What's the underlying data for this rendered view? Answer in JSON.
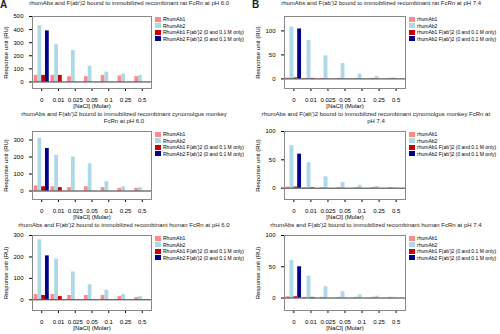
{
  "chart_data": [
    {
      "type": "bar",
      "title": "rhumAbs and F(ab')2 bound to immobilized recombinant rat FcRn at pH 6.0",
      "annotations": [
        "A"
      ],
      "x_label": "[NaCl] (Molar)",
      "y_label": "Response unit (RU)",
      "categories": [
        "0",
        "0.01",
        "0.025",
        "0.05",
        "0.1",
        "0.25",
        "0.5"
      ],
      "series": [
        {
          "name": "RhumAb1",
          "color": "#FF8888",
          "values": [
            50,
            50,
            40,
            40,
            50,
            45,
            40
          ]
        },
        {
          "name": "RhumAb2",
          "color": "#ADD8E6",
          "values": [
            430,
            285,
            240,
            120,
            75,
            60,
            50
          ]
        },
        {
          "name": "RhumAb1 F(ab')2 (0 and 0.1 M only)",
          "color": "#CC0000",
          "values": [
            50,
            50,
            0,
            0,
            0,
            0,
            0
          ]
        },
        {
          "name": "RhumAb2 F(ab')2 (0 and 0.1 M only)",
          "color": "#00008B",
          "values": [
            390,
            0,
            0,
            0,
            0,
            0,
            0
          ]
        }
      ],
      "ylim": [
        -50,
        500
      ],
      "yticks": [
        0,
        100,
        200,
        300,
        400,
        500
      ],
      "grid": false,
      "legend": "upper right"
    },
    {
      "type": "bar",
      "title": "rhumAbs and F(ab')2 bound to immobilized recombinant rat FcRn at pH 7.4",
      "annotations": [
        "B"
      ],
      "x_label": "[NaCl] (Molar)",
      "y_label": "Response unit (RU)",
      "categories": [
        "0",
        "0.01",
        "0.025",
        "0.05",
        "0.1",
        "0.25",
        "0.5"
      ],
      "series": [
        {
          "name": "rhumAb1",
          "color": "#FF8888",
          "values": [
            2,
            1,
            1,
            1,
            1,
            1,
            1
          ]
        },
        {
          "name": "rhumAb2",
          "color": "#ADD8E6",
          "values": [
            108,
            80,
            48,
            32,
            10,
            5,
            2
          ]
        },
        {
          "name": "rhumAb1 F(ab')2 (0 and 0.1 M only)",
          "color": "#CC0000",
          "values": [
            2,
            1,
            0,
            0,
            0,
            0,
            0
          ]
        },
        {
          "name": "rhumAb2 F(ab')2 (0 and 0.1 M only)",
          "color": "#00008B",
          "values": [
            104,
            0,
            0,
            0,
            0,
            0,
            0
          ]
        }
      ],
      "ylim": [
        -20,
        130
      ],
      "yticks": [
        0,
        50,
        100
      ],
      "grid": false,
      "legend": "upper right"
    },
    {
      "type": "bar",
      "title": "rhumAbs and F(ab')2 bound to immobilized recombinant cynomolgus monkey\nFcRn at pH 6.0",
      "x_label": "[NaCl] (Molar)",
      "y_label": "Response unit (RU)",
      "categories": [
        "0",
        "0.01",
        "0.025",
        "0.05",
        "0.1",
        "0.25",
        "0.5"
      ],
      "series": [
        {
          "name": "RhumAb1",
          "color": "#FF8888",
          "values": [
            30,
            25,
            20,
            25,
            20,
            15,
            15
          ]
        },
        {
          "name": "RhumAb2",
          "color": "#ADD8E6",
          "values": [
            310,
            210,
            200,
            160,
            55,
            25,
            20
          ]
        },
        {
          "name": "RhumAb1 F(ab')2 (0 and 0.1 M only)",
          "color": "#CC0000",
          "values": [
            25,
            20,
            0,
            0,
            0,
            0,
            0
          ]
        },
        {
          "name": "RhumAb2 F(ab')2 (0 and 0.1 M only)",
          "color": "#00008B",
          "values": [
            250,
            0,
            0,
            0,
            0,
            0,
            0
          ]
        }
      ],
      "ylim": [
        -50,
        350
      ],
      "yticks": [
        0,
        100,
        200,
        300
      ],
      "grid": false,
      "legend": "upper right"
    },
    {
      "type": "bar",
      "title": "rhumAbs and F(ab')2 bound to immobilized recombinant cynomolgus monkey FcRn at\npH 7.4",
      "x_label": "[NaCl] (Molar)",
      "y_label": "Response unit (RU)",
      "categories": [
        "0",
        "0.01",
        "0.025",
        "0.05",
        "0.1",
        "0.25",
        "0.5"
      ],
      "series": [
        {
          "name": "rhumAb1",
          "color": "#FF8888",
          "values": [
            2,
            1,
            1,
            1,
            1,
            1,
            1
          ]
        },
        {
          "name": "rhumAb2",
          "color": "#ADD8E6",
          "values": [
            75,
            45,
            20,
            10,
            5,
            3,
            1
          ]
        },
        {
          "name": "rhumAb1 F(ab')2 (0 and 0.1 M only)",
          "color": "#CC0000",
          "values": [
            2,
            1,
            0,
            0,
            0,
            0,
            0
          ]
        },
        {
          "name": "rhumAb2 F(ab')2 (0 and 0.1 M only)",
          "color": "#00008B",
          "values": [
            60,
            0,
            0,
            0,
            0,
            0,
            0
          ]
        }
      ],
      "ylim": [
        -20,
        100
      ],
      "yticks": [
        0,
        50,
        100
      ],
      "grid": false,
      "legend": "upper right"
    },
    {
      "type": "bar",
      "title": "rhumAbs and F(ab')2 bound to immobilized recombinant human FcRn at pH 6.0",
      "x_label": "[NaCl] (Molar)",
      "y_label": "Response unit (RU)",
      "categories": [
        "0",
        "0.01",
        "0.025",
        "0.05",
        "0.1",
        "0.25",
        "0.5"
      ],
      "series": [
        {
          "name": "RhumAb1",
          "color": "#FF8888",
          "values": [
            25,
            25,
            20,
            20,
            20,
            15,
            10
          ]
        },
        {
          "name": "RhumAb2",
          "color": "#ADD8E6",
          "values": [
            280,
            190,
            130,
            70,
            45,
            25,
            15
          ]
        },
        {
          "name": "RhumAb1 F(ab')2 (0 and 0.1 M only)",
          "color": "#CC0000",
          "values": [
            20,
            15,
            0,
            0,
            0,
            0,
            0
          ]
        },
        {
          "name": "RhumAb2 F(ab')2 (0 and 0.1 M only)",
          "color": "#00008B",
          "values": [
            205,
            0,
            0,
            0,
            0,
            0,
            0
          ]
        }
      ],
      "ylim": [
        -50,
        300
      ],
      "yticks": [
        0,
        100,
        200,
        300
      ],
      "grid": false,
      "legend": "upper right"
    },
    {
      "type": "bar",
      "title": "rhumAbs and F(ab')2 bound to immobilized recombinant human FcRn at pH 7.4",
      "x_label": "[NaCl] (Molar)",
      "y_label": "Response unit (RU)",
      "categories": [
        "0",
        "0.01",
        "0.025",
        "0.05",
        "0.1",
        "0.25",
        "0.5"
      ],
      "series": [
        {
          "name": "rhumAb1",
          "color": "#FF8888",
          "values": [
            2,
            1,
            1,
            1,
            1,
            1,
            1
          ]
        },
        {
          "name": "rhumAb2",
          "color": "#ADD8E6",
          "values": [
            60,
            35,
            18,
            10,
            5,
            3,
            1
          ]
        },
        {
          "name": "rhumAb1 F(ab')2 (0 and 0.1 M only)",
          "color": "#CC0000",
          "values": [
            2,
            1,
            0,
            0,
            0,
            0,
            0
          ]
        },
        {
          "name": "rhumAb2 F(ab')2 (0 and 0.1 M only)",
          "color": "#00008B",
          "values": [
            50,
            0,
            0,
            0,
            0,
            0,
            0
          ]
        }
      ],
      "ylim": [
        -20,
        100
      ],
      "yticks": [
        0,
        50,
        100
      ],
      "grid": false,
      "legend": "upper right"
    }
  ]
}
